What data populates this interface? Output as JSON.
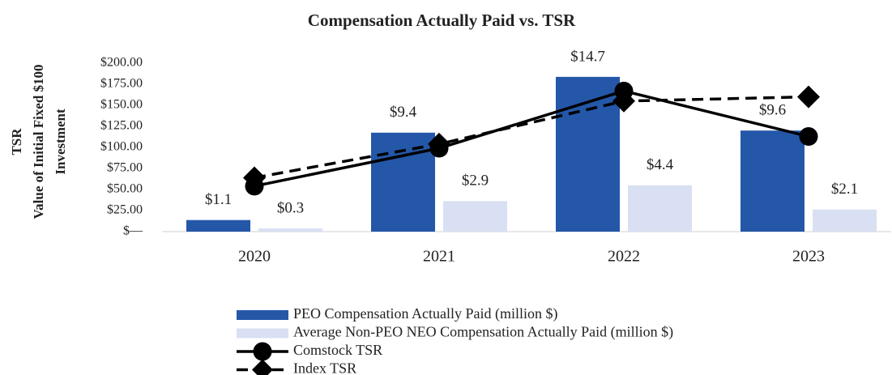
{
  "chart_data": {
    "type": "bar",
    "title": "Compensation Actually Paid vs. TSR",
    "ylabel": [
      "TSR",
      "Value of Initial Fixed $100",
      "Investment"
    ],
    "categories": [
      "2020",
      "2021",
      "2022",
      "2023"
    ],
    "ylim": [
      0,
      200
    ],
    "yticks": [
      {
        "value": 0,
        "label": "$—"
      },
      {
        "value": 25,
        "label": "$25.00"
      },
      {
        "value": 50,
        "label": "$50.00"
      },
      {
        "value": 75,
        "label": "$75.00"
      },
      {
        "value": 100,
        "label": "$100.00"
      },
      {
        "value": 125,
        "label": "$125.00"
      },
      {
        "value": 150,
        "label": "$150.00"
      },
      {
        "value": 175,
        "label": "$175.00"
      },
      {
        "value": 200,
        "label": "$200.00"
      }
    ],
    "y2lim": [
      0,
      16
    ],
    "grid": false,
    "legend": "bottom",
    "series": [
      {
        "name": "PEO Compensation Actually Paid (million $)",
        "type": "bar",
        "axis": "y2",
        "color": "#2457a8",
        "values": [
          1.1,
          9.4,
          14.7,
          9.6
        ],
        "value_labels": [
          "$1.1",
          "$9.4",
          "$14.7",
          "$9.6"
        ]
      },
      {
        "name": "Average Non-PEO NEO Compensation Actually Paid (million $)",
        "type": "bar",
        "axis": "y2",
        "color": "#d9e0f3",
        "values": [
          0.3,
          2.9,
          4.4,
          2.1
        ],
        "value_labels": [
          "$0.3",
          "$2.9",
          "$4.4",
          "$2.1"
        ]
      },
      {
        "name": "Comstock TSR",
        "type": "line",
        "marker": "circle",
        "dash": "solid",
        "color": "#000000",
        "values": [
          54,
          99,
          167,
          113
        ]
      },
      {
        "name": "Index TSR",
        "type": "line",
        "marker": "diamond",
        "dash": "dashed",
        "color": "#000000",
        "values": [
          64,
          104,
          155,
          160
        ]
      }
    ]
  }
}
